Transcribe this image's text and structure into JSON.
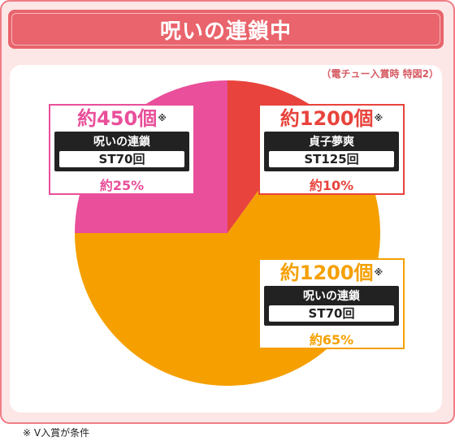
{
  "header": {
    "title": "呪いの連鎖中"
  },
  "subnote": "（電チュー入賞時 特図2）",
  "footnote": "※ V入賞が条件",
  "colors": {
    "frame": "#f07c85",
    "title_bg": "#e9646c",
    "background": "#fde6e6"
  },
  "chart_data": {
    "type": "pie",
    "title": "呪いの連鎖中",
    "slices": [
      {
        "label": "約1200個",
        "mode": "貞子夢爽",
        "st": "ST125回",
        "value": 10,
        "percent_label": "約10%",
        "color": "#e8433c"
      },
      {
        "label": "約1200個",
        "mode": "呪いの連鎖",
        "st": "ST70回",
        "value": 65,
        "percent_label": "約65%",
        "color": "#f5a000"
      },
      {
        "label": "約450個",
        "mode": "呪いの連鎖",
        "st": "ST70回",
        "value": 25,
        "percent_label": "約25%",
        "color": "#e94f9a"
      }
    ],
    "note_mark": "※"
  }
}
